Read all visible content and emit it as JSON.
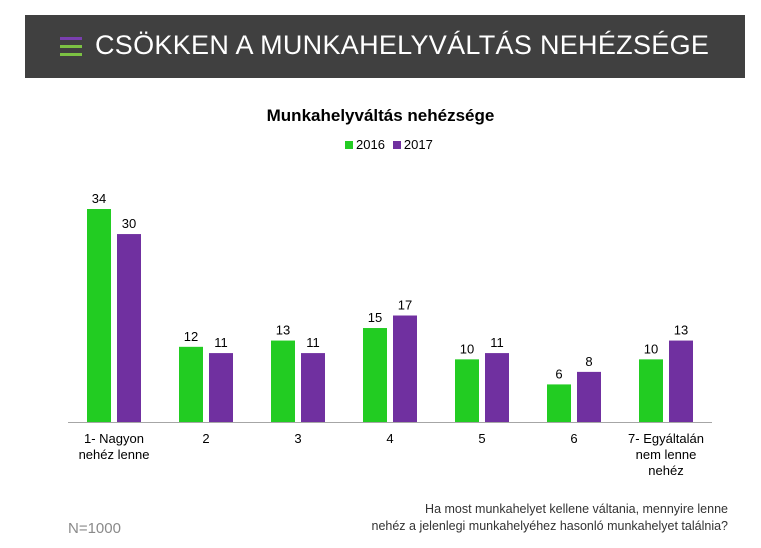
{
  "header": {
    "title": "CSÖKKEN A MUNKAHELYVÁLTÁS NEHÉZSÉGE"
  },
  "colors": {
    "header_bg": "#404040",
    "series_2016": "#22cc22",
    "series_2017": "#7030a0",
    "menu_top": "#7a3fb0",
    "menu_rest": "#7cc243"
  },
  "footer": {
    "sample": "N=1000",
    "question_line1": "Ha most munkahelyet kellene váltania, mennyire lenne",
    "question_line2": "nehéz a jelenlegi munkahelyéhez hasonló munkahelyet találnia?"
  },
  "chart_data": {
    "type": "bar",
    "title": "Munkahelyváltás nehézsége",
    "categories": [
      [
        "1- Nagyon",
        "nehéz lenne"
      ],
      [
        "2"
      ],
      [
        "3"
      ],
      [
        "4"
      ],
      [
        "5"
      ],
      [
        "6"
      ],
      [
        "7- Egyáltalán",
        "nem lenne",
        "nehéz"
      ]
    ],
    "series": [
      {
        "name": "2016",
        "values": [
          34,
          12,
          13,
          15,
          10,
          6,
          10
        ]
      },
      {
        "name": "2017",
        "values": [
          30,
          11,
          11,
          17,
          11,
          8,
          13
        ]
      }
    ],
    "ylim": [
      0,
      34
    ],
    "xlabel": "",
    "ylabel": "",
    "grid": false,
    "legend": "top-center"
  }
}
